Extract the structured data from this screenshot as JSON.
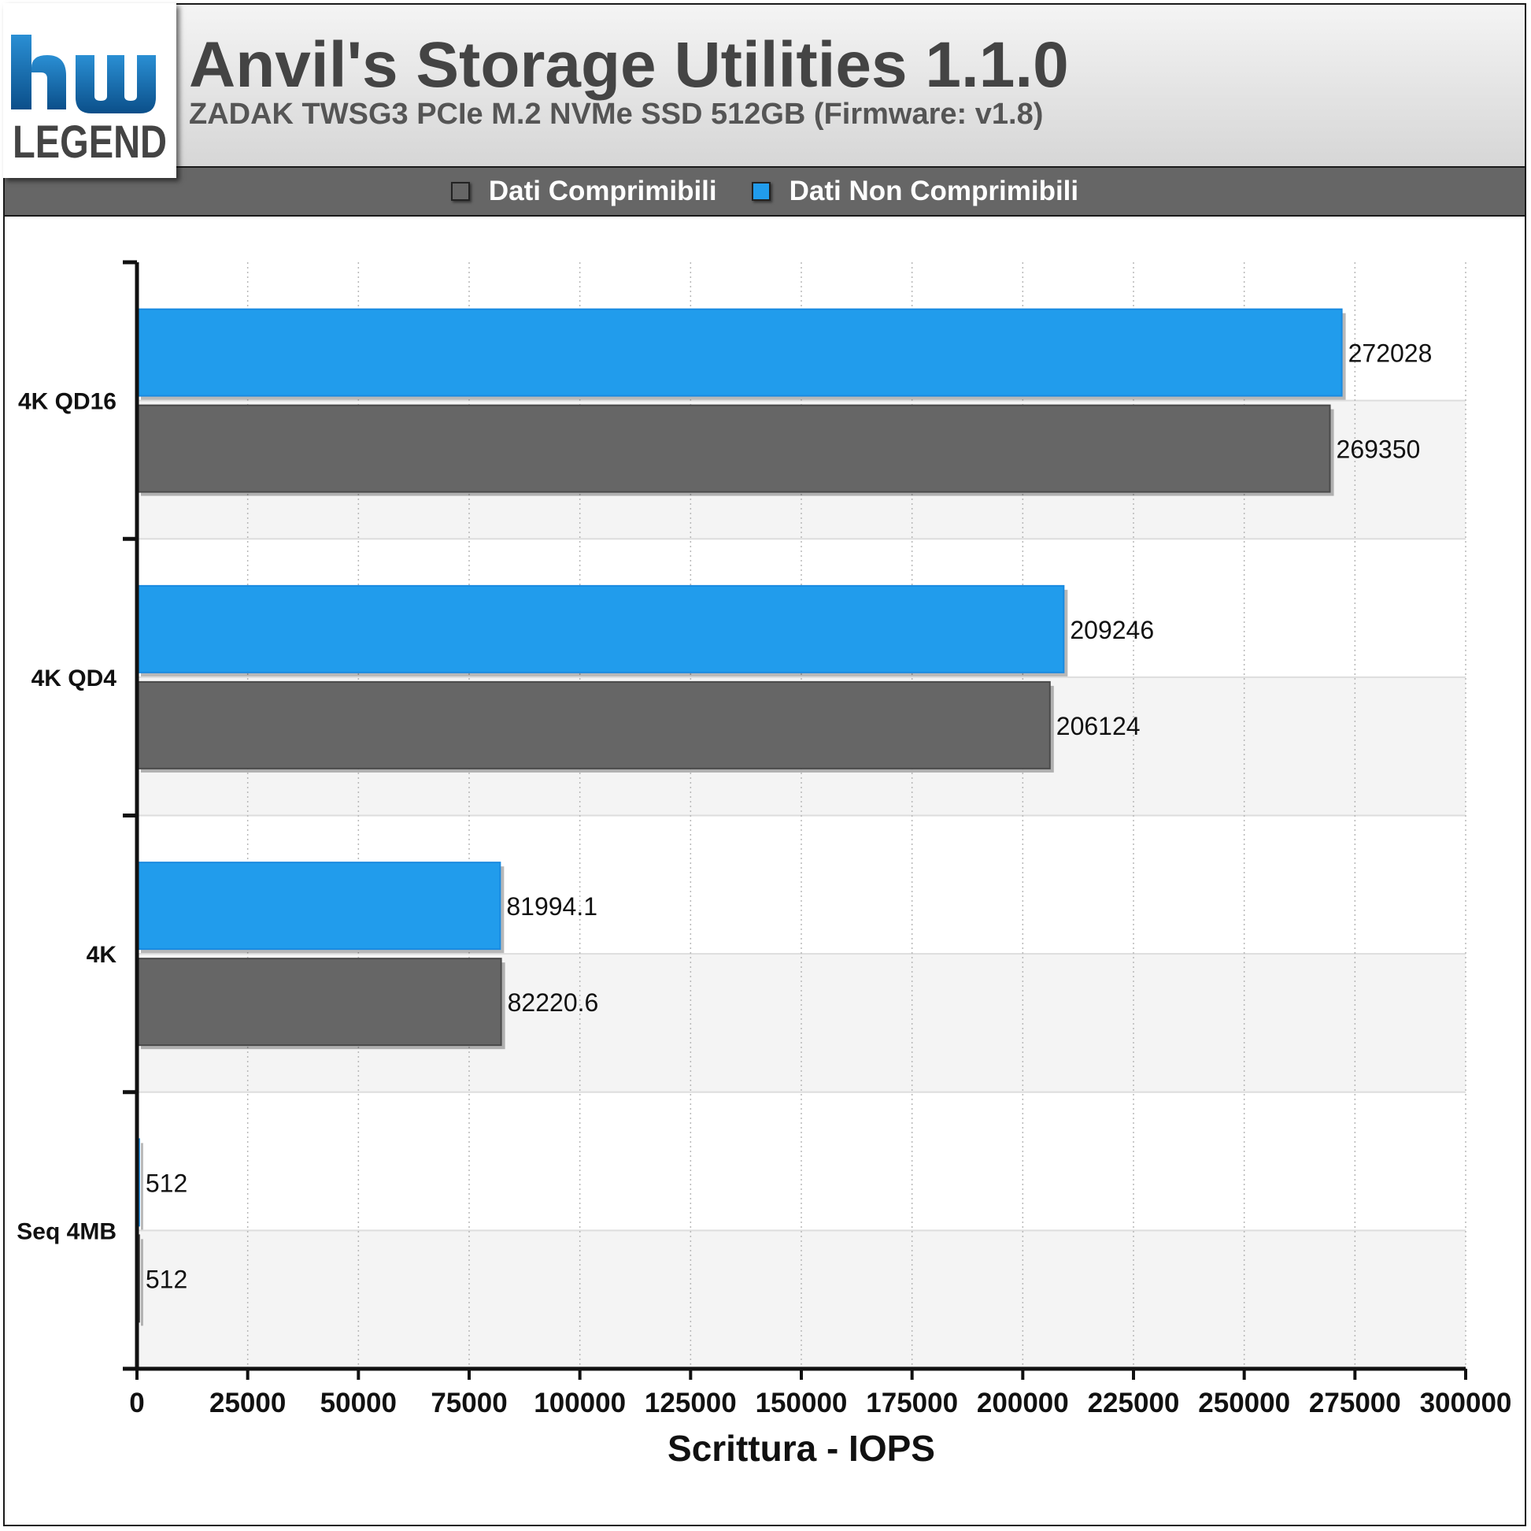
{
  "header": {
    "title": "Anvil's Storage Utilities 1.1.0",
    "subtitle": "ZADAK TWSG3 PCIe M.2 NVMe SSD 512GB (Firmware: v1.8)",
    "logo_text_top": "hw",
    "logo_text_bottom": "LEGEND"
  },
  "colors": {
    "series_compressible": "#666666",
    "series_incompressible": "#219cec",
    "header_text": "#444444",
    "legend_bar": "#666666"
  },
  "chart_data": {
    "type": "bar",
    "orientation": "horizontal",
    "title": "Anvil's Storage Utilities 1.1.0",
    "subtitle": "ZADAK TWSG3 PCIe M.2 NVMe SSD 512GB (Firmware: v1.8)",
    "categories": [
      "4K QD16",
      "4K QD4",
      "4K",
      "Seq 4MB"
    ],
    "series": [
      {
        "name": "Dati Non Comprimibili",
        "values": [
          272028,
          209246,
          81994.1,
          512
        ],
        "labels": [
          "272028",
          "209246",
          "81994.1",
          "512"
        ],
        "color": "#219cec"
      },
      {
        "name": "Dati Comprimibili",
        "values": [
          269350,
          206124,
          82220.6,
          512
        ],
        "labels": [
          "269350",
          "206124",
          "82220.6",
          "512"
        ],
        "color": "#666666"
      }
    ],
    "legend": [
      "Dati Comprimibili",
      "Dati Non Comprimibili"
    ],
    "legend_position": "top-center",
    "xlabel": "Scrittura - IOPS",
    "ylabel": "",
    "xlim": [
      0,
      300000
    ],
    "xticks": [
      "0",
      "25000",
      "50000",
      "75000",
      "100000",
      "125000",
      "150000",
      "175000",
      "200000",
      "225000",
      "250000",
      "275000",
      "300000"
    ],
    "grid": true
  }
}
